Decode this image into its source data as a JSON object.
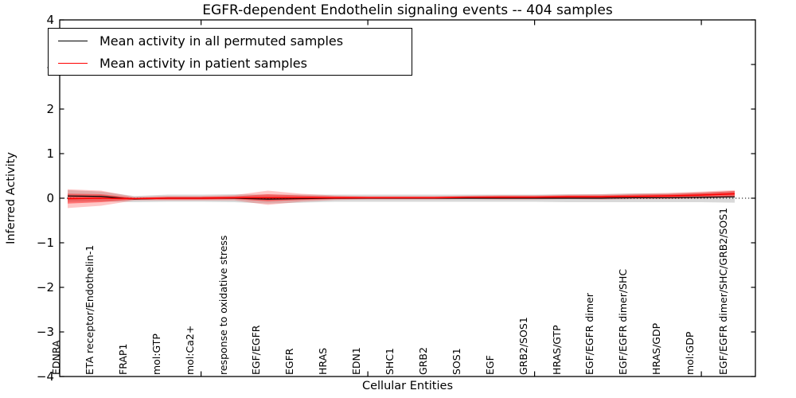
{
  "chart_data": {
    "type": "line",
    "title": "EGFR-dependent Endothelin signaling events -- 404 samples",
    "xlabel": "Cellular Entities",
    "ylabel": "Inferred Activity",
    "ylim": [
      -4,
      4
    ],
    "grid": false,
    "legend_position": "upper left",
    "zero_line_style": "black dotted at y=0",
    "yticks": [
      4,
      3,
      2,
      1,
      0,
      -1,
      -2,
      -3,
      -4
    ],
    "ytick_labels": [
      "4",
      "3",
      "2",
      "1",
      "0",
      "−1",
      "−2",
      "−3",
      "−4"
    ],
    "x_values": [
      1,
      2,
      3,
      4,
      5,
      6,
      7,
      8,
      9,
      10,
      11,
      12,
      13,
      14,
      15,
      16,
      17,
      18,
      19,
      20,
      21
    ],
    "x_major_ticks": [
      5,
      10,
      15,
      20
    ],
    "categories": [
      "EDNRA",
      "ETA receptor/Endothelin-1",
      "FRAP1",
      "mol:GTP",
      "mol:Ca2+",
      "response to oxidative stress",
      "EGF/EGFR",
      "EGFR",
      "HRAS",
      "EDN1",
      "SHC1",
      "GRB2",
      "SOS1",
      "EGF",
      "GRB2/SOS1",
      "HRAS/GTP",
      "EGF/EGFR dimer",
      "EGF/EGFR dimer/SHC",
      "HRAS/GDP",
      "mol:GDP",
      "EGF/EGFR dimer/SHC/GRB2/SOS1"
    ],
    "series": [
      {
        "name": "Mean activity in all permuted samples",
        "color": "#000000",
        "width": 1.2,
        "values": [
          0.05,
          0.04,
          -0.02,
          0.0,
          0.0,
          0.0,
          -0.02,
          -0.01,
          0.0,
          0.0,
          0.0,
          0.0,
          0.0,
          0.0,
          0.0,
          0.0,
          0.0,
          0.01,
          0.01,
          0.02,
          0.03
        ]
      },
      {
        "name": "Mean activity in patient samples",
        "color": "#ff0000",
        "width": 1.6,
        "values": [
          -0.01,
          0.0,
          -0.01,
          0.0,
          0.0,
          0.01,
          0.01,
          0.01,
          0.01,
          0.01,
          0.01,
          0.01,
          0.02,
          0.02,
          0.02,
          0.03,
          0.03,
          0.04,
          0.05,
          0.07,
          0.1
        ]
      }
    ],
    "bands": [
      {
        "name": "permuted-samples-range",
        "color": "#787878",
        "alpha": 0.28,
        "center_series": 0,
        "halfwidths": [
          0.13,
          0.11,
          0.07,
          0.08,
          0.08,
          0.09,
          0.1,
          0.09,
          0.08,
          0.08,
          0.08,
          0.08,
          0.08,
          0.08,
          0.08,
          0.09,
          0.09,
          0.1,
          0.1,
          0.11,
          0.13
        ]
      },
      {
        "name": "patient-samples-range-outer",
        "color": "#ff0000",
        "alpha": 0.22,
        "center_series": 1,
        "halfwidths": [
          0.21,
          0.17,
          0.04,
          0.05,
          0.05,
          0.06,
          0.16,
          0.09,
          0.05,
          0.04,
          0.04,
          0.04,
          0.04,
          0.05,
          0.05,
          0.05,
          0.06,
          0.06,
          0.07,
          0.08,
          0.08
        ]
      },
      {
        "name": "patient-samples-range-inner",
        "color": "#ff0000",
        "alpha": 0.42,
        "center_series": 1,
        "halfwidths": [
          0.11,
          0.09,
          0.02,
          0.03,
          0.03,
          0.03,
          0.08,
          0.05,
          0.03,
          0.02,
          0.02,
          0.02,
          0.02,
          0.03,
          0.03,
          0.03,
          0.03,
          0.04,
          0.04,
          0.05,
          0.06
        ]
      }
    ]
  },
  "legend": {
    "items": [
      {
        "label": "Mean activity in all permuted samples",
        "color": "#000000"
      },
      {
        "label": "Mean activity in patient samples",
        "color": "#ff0000"
      }
    ]
  }
}
